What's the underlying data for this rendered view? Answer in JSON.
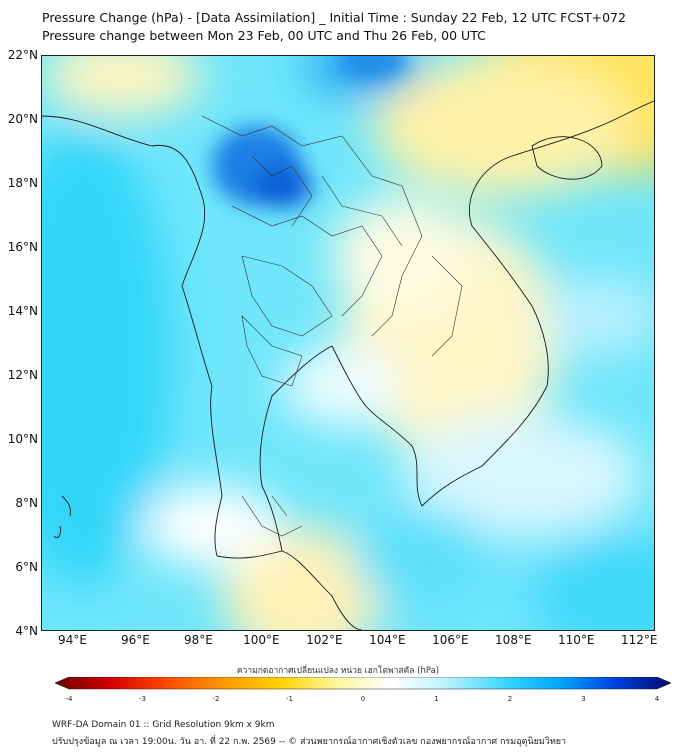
{
  "title": {
    "line1": "Pressure Change (hPa) - [Data Assimilation] _ Initial Time : Sunday 22 Feb, 12 UTC FCST+072",
    "line2": "Pressure change between Mon 23 Feb, 00 UTC and Thu 26 Feb, 00 UTC"
  },
  "map": {
    "lat_range": [
      4,
      22
    ],
    "lon_range": [
      93,
      112.5
    ],
    "lat_ticks": [
      "22°N",
      "20°N",
      "18°N",
      "16°N",
      "14°N",
      "12°N",
      "10°N",
      "8°N",
      "6°N",
      "4°N"
    ],
    "lat_values": [
      22,
      20,
      18,
      16,
      14,
      12,
      10,
      8,
      6,
      4
    ],
    "lon_ticks": [
      "94°E",
      "96°E",
      "98°E",
      "100°E",
      "102°E",
      "104°E",
      "106°E",
      "108°E",
      "110°E",
      "112°E"
    ],
    "lon_values": [
      94,
      96,
      98,
      100,
      102,
      104,
      106,
      108,
      110,
      112
    ]
  },
  "colorbar": {
    "title": "ความกดอากาศเปลี่ยนแปลง หน่วย เฮกโตพาสคัล (hPa)",
    "min": -4,
    "max": 4,
    "ticks": [
      "-4",
      "-3",
      "-2",
      "-1",
      "0",
      "1",
      "2",
      "3",
      "4"
    ],
    "tick_values": [
      -4,
      -3,
      -2,
      -1,
      0,
      1,
      2,
      3,
      4
    ],
    "colors": [
      "#6b0000",
      "#d40000",
      "#ff4a00",
      "#ff9900",
      "#ffd200",
      "#fff59a",
      "#ffffff",
      "#b8f2ff",
      "#3fd8ff",
      "#00a8ff",
      "#0040e0",
      "#000a6e"
    ]
  },
  "footer": {
    "line1": "WRF-DA Domain 01 :: Grid Resolution 9km x 9km",
    "line2": "ปรับปรุงข้อมูล ณ เวลา 19:00น. วัน อา. ที่ 22 ก.พ. 2569 -- © ส่วนพยากรณ์อากาศเชิงตัวเลข กองพยากรณ์อากาศ กรมอุตุนิยมวิทยา"
  }
}
